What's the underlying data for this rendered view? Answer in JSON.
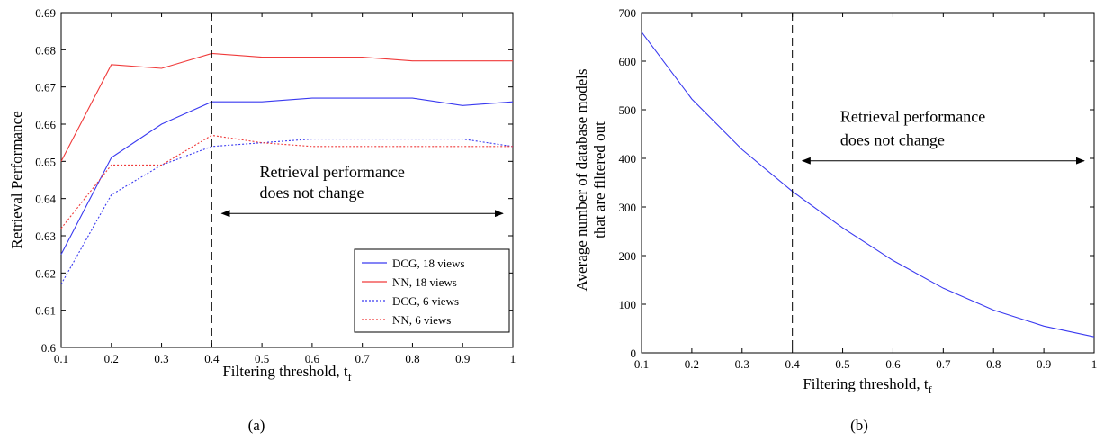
{
  "chart_data": [
    {
      "type": "line",
      "panel_label": "(a)",
      "xlabel": "Filtering threshold, t",
      "xlabel_sub": "f",
      "ylabel": "Retrieval Performance",
      "xlim": [
        0.1,
        1
      ],
      "ylim": [
        0.6,
        0.69
      ],
      "xticks": [
        0.1,
        0.2,
        0.3,
        0.4,
        0.5,
        0.6,
        0.7,
        0.8,
        0.9,
        1
      ],
      "xtick_labels": [
        "0.1",
        "0.2",
        "0.3",
        "0.4",
        "0.5",
        "0.6",
        "0.7",
        "0.8",
        "0.9",
        "1"
      ],
      "yticks": [
        0.6,
        0.61,
        0.62,
        0.63,
        0.64,
        0.65,
        0.66,
        0.67,
        0.68,
        0.69
      ],
      "ytick_labels": [
        "0.6",
        "0.61",
        "0.62",
        "0.63",
        "0.64",
        "0.65",
        "0.66",
        "0.67",
        "0.68",
        "0.69"
      ],
      "grid": false,
      "legend_position": "bottom-right",
      "x": [
        0.1,
        0.2,
        0.3,
        0.4,
        0.5,
        0.6,
        0.7,
        0.8,
        0.9,
        1.0
      ],
      "series": [
        {
          "name": "DCG, 18 views",
          "color": "#3a3af0",
          "style": "solid",
          "values": [
            0.625,
            0.651,
            0.66,
            0.666,
            0.666,
            0.667,
            0.667,
            0.667,
            0.665,
            0.666
          ]
        },
        {
          "name": "NN, 18 views",
          "color": "#f03a3a",
          "style": "solid",
          "values": [
            0.65,
            0.676,
            0.675,
            0.679,
            0.678,
            0.678,
            0.678,
            0.677,
            0.677,
            0.677
          ]
        },
        {
          "name": "DCG, 6 views",
          "color": "#3a3af0",
          "style": "dotted",
          "values": [
            0.617,
            0.641,
            0.649,
            0.654,
            0.655,
            0.656,
            0.656,
            0.656,
            0.656,
            0.654
          ]
        },
        {
          "name": "NN, 6 views",
          "color": "#f03a3a",
          "style": "dotted",
          "values": [
            0.632,
            0.649,
            0.649,
            0.657,
            0.655,
            0.654,
            0.654,
            0.654,
            0.654,
            0.654
          ]
        }
      ],
      "vline_x": 0.4,
      "annotation": {
        "line1": "Retrieval performance",
        "line2": "does not change",
        "arrow_from_x": 0.42,
        "arrow_to_x": 0.98,
        "arrow_y": 0.636
      }
    },
    {
      "type": "line",
      "panel_label": "(b)",
      "xlabel": "Filtering threshold, t",
      "xlabel_sub": "f",
      "ylabel_line1": "Average number of database models",
      "ylabel_line2": "that are filtered out",
      "xlim": [
        0.1,
        1
      ],
      "ylim": [
        0,
        700
      ],
      "xticks": [
        0.1,
        0.2,
        0.3,
        0.4,
        0.5,
        0.6,
        0.7,
        0.8,
        0.9,
        1
      ],
      "xtick_labels": [
        "0.1",
        "0.2",
        "0.3",
        "0.4",
        "0.5",
        "0.6",
        "0.7",
        "0.8",
        "0.9",
        "1"
      ],
      "yticks": [
        0,
        100,
        200,
        300,
        400,
        500,
        600,
        700
      ],
      "ytick_labels": [
        "0",
        "100",
        "200",
        "300",
        "400",
        "500",
        "600",
        "700"
      ],
      "grid": false,
      "x": [
        0.1,
        0.2,
        0.3,
        0.4,
        0.5,
        0.6,
        0.7,
        0.8,
        0.9,
        1.0
      ],
      "series": [
        {
          "color": "#3a3af0",
          "style": "solid",
          "values": [
            660,
            522,
            418,
            332,
            257,
            190,
            133,
            88,
            55,
            33
          ]
        }
      ],
      "vline_x": 0.4,
      "annotation": {
        "line1": "Retrieval performance",
        "line2": "does not change",
        "arrow_from_x": 0.42,
        "arrow_to_x": 0.98,
        "arrow_y": 395
      }
    }
  ]
}
